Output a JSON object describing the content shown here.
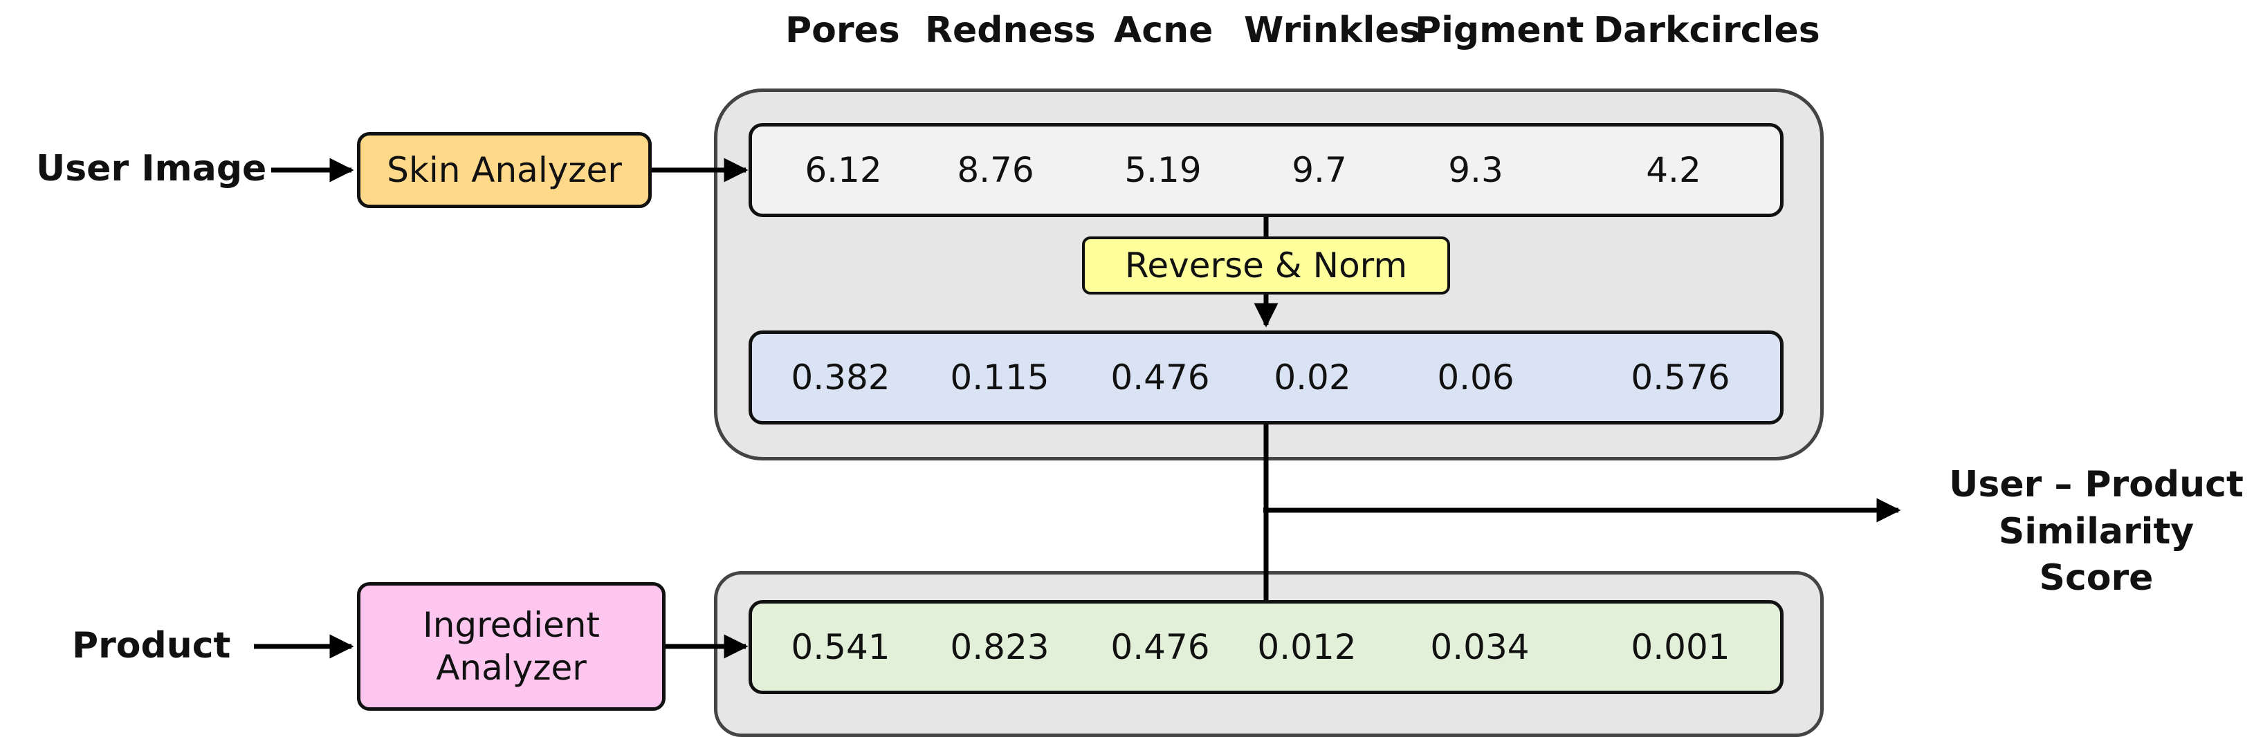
{
  "headers": [
    "Pores",
    "Redness",
    "Acne",
    "Wrinkles",
    "Pigment",
    "Darkcircles"
  ],
  "inputs": {
    "user": "User Image",
    "product": "Product"
  },
  "boxes": {
    "skin_analyzer": "Skin Analyzer",
    "ingredient_analyzer": "Ingredient Analyzer",
    "reverse_norm": "Reverse & Norm"
  },
  "rows": {
    "raw": [
      "6.12",
      "8.76",
      "5.19",
      "9.7",
      "9.3",
      "4.2"
    ],
    "normalized": [
      "0.382",
      "0.115",
      "0.476",
      "0.02",
      "0.06",
      "0.576"
    ],
    "product": [
      "0.541",
      "0.823",
      "0.476",
      "0.012",
      "0.034",
      "0.001"
    ]
  },
  "output": {
    "line1": "User – Product",
    "line2": "Similarity Score"
  }
}
